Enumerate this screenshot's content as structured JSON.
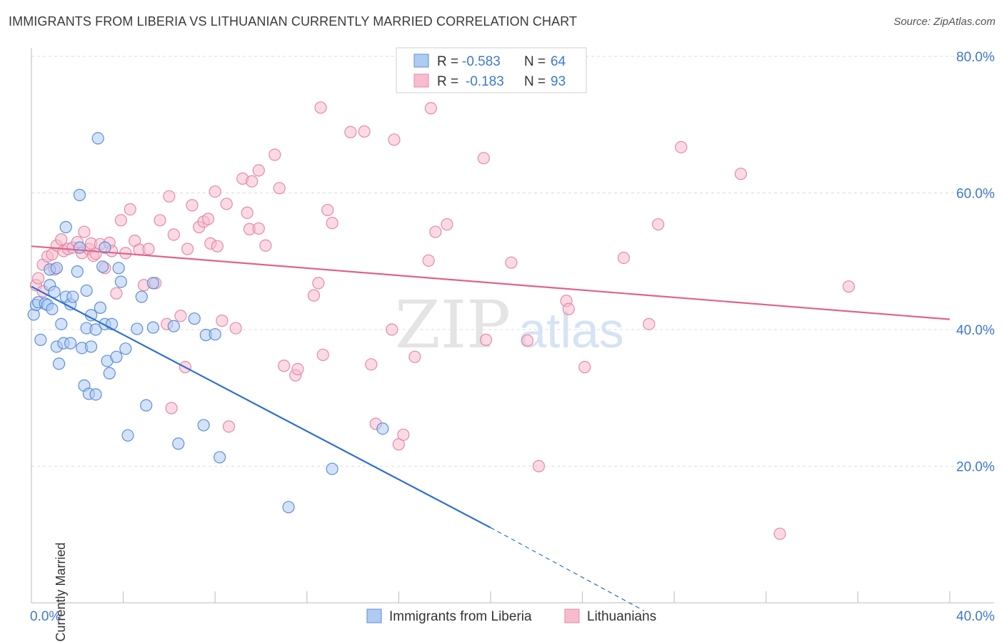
{
  "title": "IMMIGRANTS FROM LIBERIA VS LITHUANIAN CURRENTLY MARRIED CORRELATION CHART",
  "source": "Source: ZipAtlas.com",
  "watermark": {
    "zip": "ZIP",
    "atlas": "atlas"
  },
  "legend_top": {
    "r_label": "R =",
    "n_label": "N =",
    "series": [
      {
        "r": "-0.583",
        "n": "64"
      },
      {
        "r": "-0.183",
        "n": "93"
      }
    ]
  },
  "legend_bottom": [
    "Immigrants from Liberia",
    "Lithuanians"
  ],
  "colors": {
    "blue_fill": "#aecbf3",
    "blue_stroke": "#5b8fd8",
    "blue_line": "#2a6fd4",
    "pink_fill": "#f7bccd",
    "pink_stroke": "#e58aa5",
    "pink_line": "#e0628e",
    "tick_label": "#3f78cc",
    "grid": "#dcdcdc"
  },
  "chart_data": {
    "type": "scatter",
    "title": "IMMIGRANTS FROM LIBERIA VS LITHUANIAN CURRENTLY MARRIED CORRELATION CHART",
    "xlabel": "",
    "ylabel": "Currently Married",
    "xlim": [
      0,
      40
    ],
    "ylim": [
      0,
      80
    ],
    "x_tick_labels": [
      "0.0%",
      "40.0%"
    ],
    "y_tick_labels": [
      "80.0%",
      "60.0%",
      "40.0%",
      "20.0%"
    ],
    "y_ticks": [
      80,
      60,
      40,
      20
    ],
    "series": [
      {
        "name": "Immigrants from Liberia",
        "R": -0.583,
        "N": 64,
        "trend": {
          "x": [
            0,
            20
          ],
          "y": [
            46.3,
            11.0
          ],
          "dashed_to": [
            26.7,
            -1.2
          ]
        },
        "points": [
          [
            0.1,
            42.2
          ],
          [
            0.2,
            43.6
          ],
          [
            0.3,
            44.0
          ],
          [
            0.4,
            38.5
          ],
          [
            0.6,
            43.8
          ],
          [
            0.7,
            43.6
          ],
          [
            0.8,
            46.5
          ],
          [
            0.8,
            48.8
          ],
          [
            0.9,
            43.0
          ],
          [
            1.0,
            45.5
          ],
          [
            1.1,
            49.0
          ],
          [
            1.1,
            37.5
          ],
          [
            1.2,
            35.0
          ],
          [
            1.3,
            40.8
          ],
          [
            1.4,
            38.0
          ],
          [
            1.5,
            44.8
          ],
          [
            1.5,
            55.0
          ],
          [
            1.7,
            38.0
          ],
          [
            1.7,
            43.7
          ],
          [
            1.8,
            44.8
          ],
          [
            2.0,
            48.5
          ],
          [
            2.1,
            52.0
          ],
          [
            2.1,
            59.7
          ],
          [
            2.2,
            37.3
          ],
          [
            2.3,
            31.8
          ],
          [
            2.4,
            40.2
          ],
          [
            2.4,
            45.7
          ],
          [
            2.5,
            30.6
          ],
          [
            2.6,
            37.5
          ],
          [
            2.6,
            42.1
          ],
          [
            2.8,
            30.5
          ],
          [
            2.8,
            40.0
          ],
          [
            2.9,
            68.0
          ],
          [
            3.0,
            43.2
          ],
          [
            3.1,
            49.2
          ],
          [
            3.2,
            52.0
          ],
          [
            3.2,
            40.8
          ],
          [
            3.3,
            35.4
          ],
          [
            3.4,
            33.6
          ],
          [
            3.5,
            40.8
          ],
          [
            3.7,
            36.0
          ],
          [
            3.8,
            49.0
          ],
          [
            3.9,
            47.0
          ],
          [
            4.1,
            37.2
          ],
          [
            4.2,
            24.5
          ],
          [
            4.6,
            40.1
          ],
          [
            4.8,
            44.8
          ],
          [
            5.0,
            28.9
          ],
          [
            5.3,
            46.8
          ],
          [
            5.3,
            40.3
          ],
          [
            6.2,
            40.5
          ],
          [
            6.4,
            23.3
          ],
          [
            7.1,
            41.6
          ],
          [
            7.5,
            26.0
          ],
          [
            7.6,
            39.2
          ],
          [
            8.0,
            39.3
          ],
          [
            8.2,
            21.3
          ],
          [
            11.2,
            14.0
          ],
          [
            13.1,
            19.6
          ],
          [
            15.3,
            25.5
          ]
        ]
      },
      {
        "name": "Lithuanians",
        "R": -0.183,
        "N": 93,
        "trend": {
          "x": [
            0,
            40
          ],
          "y": [
            52.2,
            41.5
          ]
        },
        "points": [
          [
            0.2,
            46.5
          ],
          [
            0.3,
            47.5
          ],
          [
            0.5,
            45.6
          ],
          [
            0.5,
            49.5
          ],
          [
            0.7,
            50.7
          ],
          [
            0.9,
            51.0
          ],
          [
            1.0,
            48.8
          ],
          [
            1.1,
            52.3
          ],
          [
            1.3,
            53.2
          ],
          [
            1.4,
            51.5
          ],
          [
            1.6,
            51.8
          ],
          [
            1.8,
            52.0
          ],
          [
            2.0,
            52.8
          ],
          [
            2.2,
            51.2
          ],
          [
            2.3,
            54.3
          ],
          [
            2.5,
            51.8
          ],
          [
            2.6,
            52.6
          ],
          [
            2.7,
            50.8
          ],
          [
            2.8,
            51.1
          ],
          [
            3.0,
            52.5
          ],
          [
            3.2,
            49.0
          ],
          [
            3.4,
            52.7
          ],
          [
            3.5,
            51.5
          ],
          [
            3.7,
            45.3
          ],
          [
            3.9,
            56.0
          ],
          [
            4.1,
            51.2
          ],
          [
            4.3,
            57.6
          ],
          [
            4.5,
            53.0
          ],
          [
            4.7,
            51.7
          ],
          [
            4.9,
            46.5
          ],
          [
            5.1,
            51.8
          ],
          [
            5.4,
            46.8
          ],
          [
            5.6,
            56.0
          ],
          [
            5.9,
            40.8
          ],
          [
            6.0,
            59.5
          ],
          [
            6.1,
            28.5
          ],
          [
            6.2,
            53.9
          ],
          [
            6.5,
            42.0
          ],
          [
            6.7,
            34.5
          ],
          [
            6.8,
            51.8
          ],
          [
            7.0,
            58.2
          ],
          [
            7.3,
            55.0
          ],
          [
            7.5,
            55.8
          ],
          [
            7.7,
            56.2
          ],
          [
            7.8,
            52.6
          ],
          [
            8.0,
            60.2
          ],
          [
            8.1,
            52.2
          ],
          [
            8.3,
            41.3
          ],
          [
            8.5,
            58.4
          ],
          [
            8.6,
            25.8
          ],
          [
            8.9,
            40.2
          ],
          [
            9.2,
            62.1
          ],
          [
            9.4,
            57.1
          ],
          [
            9.5,
            54.7
          ],
          [
            9.6,
            61.7
          ],
          [
            9.9,
            54.8
          ],
          [
            9.9,
            63.3
          ],
          [
            10.2,
            52.3
          ],
          [
            10.6,
            65.6
          ],
          [
            10.8,
            60.7
          ],
          [
            11.0,
            34.7
          ],
          [
            11.5,
            33.3
          ],
          [
            11.6,
            34.2
          ],
          [
            12.3,
            45.0
          ],
          [
            12.5,
            46.8
          ],
          [
            12.7,
            36.3
          ],
          [
            12.6,
            72.5
          ],
          [
            12.9,
            57.5
          ],
          [
            13.1,
            55.6
          ],
          [
            13.9,
            68.9
          ],
          [
            14.5,
            69.0
          ],
          [
            14.8,
            34.9
          ],
          [
            15.0,
            26.2
          ],
          [
            15.7,
            40.0
          ],
          [
            15.8,
            67.8
          ],
          [
            16.0,
            23.2
          ],
          [
            16.2,
            24.6
          ],
          [
            16.7,
            36.0
          ],
          [
            17.3,
            50.1
          ],
          [
            17.4,
            72.4
          ],
          [
            17.6,
            54.3
          ],
          [
            18.1,
            55.4
          ],
          [
            19.7,
            65.1
          ],
          [
            19.8,
            38.5
          ],
          [
            20.9,
            49.8
          ],
          [
            21.6,
            38.4
          ],
          [
            22.1,
            20.0
          ],
          [
            23.3,
            44.2
          ],
          [
            23.4,
            43.0
          ],
          [
            24.1,
            34.5
          ],
          [
            25.8,
            50.5
          ],
          [
            26.9,
            40.8
          ],
          [
            27.3,
            55.4
          ],
          [
            28.3,
            66.7
          ],
          [
            30.9,
            62.8
          ],
          [
            32.6,
            10.1
          ],
          [
            35.6,
            46.3
          ]
        ]
      }
    ]
  }
}
